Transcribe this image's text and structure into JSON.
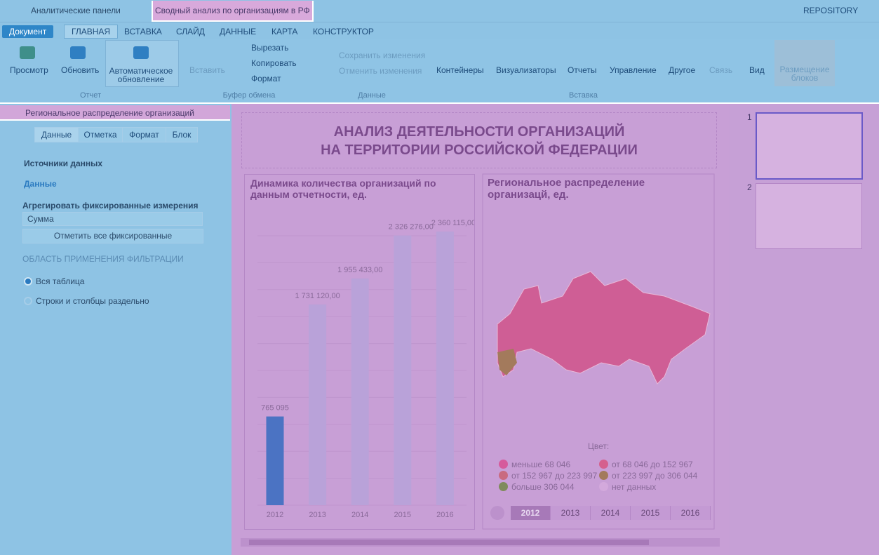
{
  "breadcrumb": [
    "Аналитические панели",
    "Сводный анализ по организациям в РФ"
  ],
  "repository": "REPOSITORY",
  "tabs": [
    "Документ",
    "ГЛАВНАЯ",
    "ВСТАВКА",
    "СЛАЙД",
    "ДАННЫЕ",
    "КАРТА",
    "КОНСТРУКТОР"
  ],
  "ribbon": {
    "report": {
      "label": "Отчет",
      "buttons": [
        "Просмотр",
        "Обновить",
        "Автоматическое обновление"
      ]
    },
    "clipboard": {
      "label": "Буфер обмена",
      "buttons": [
        "Вставить",
        "Вырезать",
        "Копировать",
        "Формат"
      ]
    },
    "data": {
      "label": "Данные",
      "buttons": [
        "Сохранить изменения",
        "Отменить изменения"
      ]
    },
    "insert": {
      "label": "Вставка",
      "buttons": [
        "Контейнеры",
        "Визуализаторы",
        "Отчеты",
        "Управление",
        "Другое",
        "Связь"
      ]
    },
    "other": [
      "Вид",
      "Размещение блоков"
    ]
  },
  "panel": {
    "title": "Региональное распределение организаций",
    "tabs": [
      "Данные",
      "Отметка",
      "Формат",
      "Блок"
    ],
    "sections": [
      "Источники данных",
      "Данные"
    ],
    "aggregate_label": "Агрегировать фиксированные измерения",
    "aggregate_value": "Сумма",
    "mark_all": "Отметить все фиксированные",
    "filter_title": "ОБЛАСТЬ ПРИМЕНЕНИЯ ФИЛЬТРАЦИИ",
    "radios": [
      "Вся таблица",
      "Строки и столбцы раздельно"
    ]
  },
  "slide": {
    "title": [
      "АНАЛИЗ ДЕЯТЕЛЬНОСТИ ОРГАНИЗАЦИЙ",
      "НА ТЕРРИТОРИИ РОССИЙСКОЙ ФЕДЕРАЦИИ"
    ],
    "bar_chart": {
      "type": "bar",
      "title": "Динамика количества организаций по данным отчетности, ед.",
      "categories": [
        "2012",
        "2013",
        "2014",
        "2015",
        "2016"
      ],
      "values": [
        765095,
        1731120,
        1955433,
        2326276,
        2360115
      ],
      "value_labels": [
        "765 095",
        "1 731 120,00",
        "1 955 433,00",
        "2 326 276,00",
        "2 360 115,00"
      ],
      "color": "#b9a2d9",
      "selected_color": "#4b73c3",
      "selected": 0
    },
    "map": {
      "title": "Региональное распределение организацй, ед.",
      "legend_title": "Цвет:",
      "legend": [
        {
          "label": "меньше 68 046",
          "color": "#d65a9c"
        },
        {
          "label": "от 68 046 до 152 967",
          "color": "#d5608e"
        },
        {
          "label": "от 152 967 до 223 997",
          "color": "#c96a80"
        },
        {
          "label": "от 223 997 до 306 044",
          "color": "#a37a5c"
        },
        {
          "label": "больше 306 044",
          "color": "#7f8b5c"
        },
        {
          "label": "нет данных",
          "color": "#d3a9dc"
        }
      ],
      "years": [
        "2012",
        "2013",
        "2014",
        "2015",
        "2016"
      ]
    }
  },
  "thumbnails": [
    "1",
    "2"
  ]
}
